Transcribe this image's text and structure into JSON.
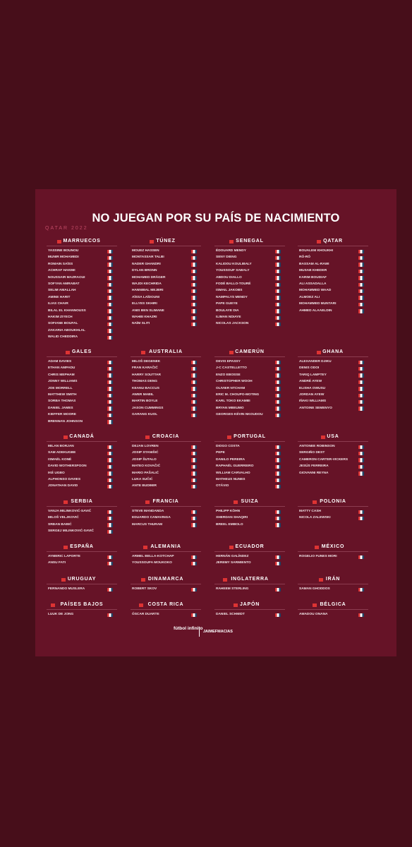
{
  "title": "NO JUEGAN POR SU PAÍS DE NACIMIENTO",
  "subtitle": "QATAR 2022",
  "groups": [
    {
      "team": "MARRUECOS",
      "players": [
        "YASSINE BOUNOU",
        "MUNIR MOHAMEDI",
        "ROMAIN SAÏSS",
        "ACHRAF HAKIMI",
        "NOUSSAIR MAZRAOUI",
        "SOFYAN AMRABAT",
        "SELIM AMALLAH",
        "AMINE HARIT",
        "ILIAS CHAIR",
        "BILAL EL KHANNOUSS",
        "HAKIM ZIYECH",
        "SOFIANE BOUFAL",
        "ZAKARIA ABOUKHLAL",
        "WALID CHEDDIRA"
      ]
    },
    {
      "team": "TÚNEZ",
      "players": [
        "MOUEZ HASSEN",
        "MONTASSAR TALBI",
        "NADER GHANDRI",
        "DYLAN BRONN",
        "MOHAMED DRÄGER",
        "WAJDI KECHRIDA",
        "HANNIBAL MEJBRI",
        "AÏSSA LAÏDOUNI",
        "ELLYES SKHIRI",
        "ANIS BEN SLIMANE",
        "WAHBI KHAZRI",
        "NAÏM SLITI"
      ]
    },
    {
      "team": "SENEGAL",
      "players": [
        "ÉDOUARD MENDY",
        "SENY DIENG",
        "KALIDOU KOULIBALY",
        "YOUSSOUF SABALY",
        "ABDOU DIALLO",
        "FODÉ BALLO-TOURÉ",
        "ISMAIL JAKOBS",
        "NAMPALYS MENDY",
        "PAPE GUEYE",
        "BOULAYE DIA",
        "ILIMAN NDIAYE",
        "NICOLAS JACKSON"
      ]
    },
    {
      "team": "QATAR",
      "players": [
        "BOUALEM KHOUKHI",
        "RÓ-RÓ",
        "BASSAM AL-RAWI",
        "MUSAB KHEDER",
        "KARIM BOUDIAF",
        "ALI ASSADALLA",
        "MOHAMMED WAAD",
        "ALMOEZ ALI",
        "MOHAMMED MUNTARI",
        "AHMED ALAAELDIN"
      ]
    },
    {
      "team": "GALES",
      "players": [
        "ADAM DAVIES",
        "ETHAN AMPADU",
        "CHRIS MEPHAM",
        "JONNY WILLIAMS",
        "JOE MORRELL",
        "MATTHEW SMITH",
        "SORBA THOMAS",
        "DANIEL JAMES",
        "KIEFFER MOORE",
        "BRENNAN JOHNSON"
      ]
    },
    {
      "team": "AUSTRALIA",
      "players": [
        "MILOŠ DEGENEK",
        "FRAN KARAČIĆ",
        "HARRY SOUTTAR",
        "THOMAS DENG",
        "KEANU BACCUS",
        "AWER MABIL",
        "MARTIN BOYLE",
        "JASON CUMMINGS",
        "GARANG KUOL"
      ]
    },
    {
      "team": "CAMERÚN",
      "players": [
        "DEVIS EPASSY",
        "J-C CASTELLETTO",
        "ENZO EBOSSE",
        "CHRISTOPHER WOOH",
        "OLIVIER NTCHAM",
        "ERIC M. CHOUPO-MOTING",
        "KARL TOKO EKAMBI",
        "BRYAN MBEUMO",
        "GEORGES-KÉVIN NKOUDOU"
      ]
    },
    {
      "team": "GHANA",
      "players": [
        "ALEXANDER DJIKU",
        "DENIS ODOI",
        "TARIQ LAMPTEY",
        "ANDRÉ AYEW",
        "ELISHA OWUSU",
        "JORDAN AYEW",
        "IÑAKI WILLIAMS",
        "ANTOINE SEMENYO"
      ]
    },
    {
      "team": "CANADÁ",
      "players": [
        "MILAN BORJAN",
        "SAM ADEKUGBE",
        "ISMAËL KONÉ",
        "DAVID WOTHERSPOON",
        "IKÉ UGBO",
        "ALPHONSO DAVIES",
        "JONATHAN DAVID"
      ]
    },
    {
      "team": "CROACIA",
      "players": [
        "DEJAN LOVREN",
        "JOSIP STANIŠIĆ",
        "JOSIP ŠUTALO",
        "MATEO KOVAČIĆ",
        "MARIO PAŠALIĆ",
        "LUKA SUČIĆ",
        "ANTE BUDIMIR"
      ]
    },
    {
      "team": "PORTUGAL",
      "players": [
        "DIOGO COSTA",
        "PEPE",
        "DANILO PEREIRA",
        "RAPHAËL GUERREIRO",
        "WILLIAM CARVALHO",
        "MATHEUS NUNES",
        "OTÁVIO"
      ]
    },
    {
      "team": "USA",
      "players": [
        "ANTONEE ROBINSON",
        "SERGIÑO DEST",
        "CAMERON CARTER-VICKERS",
        "JESÚS FERREIRA",
        "GIOVANNI REYNA"
      ]
    },
    {
      "team": "SERBIA",
      "players": [
        "VANJA MILINKOVIĆ-SAVIĆ",
        "MILOŠ VELJKOVIĆ",
        "SRĐAN BABIĆ",
        "SERGEJ MILINKOVIĆ-SAVIĆ"
      ]
    },
    {
      "team": "FRANCIA",
      "players": [
        "STEVE MANDANDA",
        "EDUARDO CAMAVINGA",
        "MARCUS THURAM"
      ]
    },
    {
      "team": "SUIZA",
      "players": [
        "PHILIPP KÖHN",
        "XHERDAN SHAQIRI",
        "BREEL EMBOLO"
      ]
    },
    {
      "team": "POLONIA",
      "players": [
        "MATTY CASH",
        "NICOLA ZALEWSKI"
      ]
    },
    {
      "team": "ESPAÑA",
      "players": [
        "AYMERIC LAPORTE",
        "ANSU FATI"
      ]
    },
    {
      "team": "ALEMANIA",
      "players": [
        "ARMEL BELLA-KOTCHAP",
        "YOUSSOUFA MOUKOKO"
      ]
    },
    {
      "team": "ECUADOR",
      "players": [
        "HERNÁN GALÍNDEZ",
        "JEREMY SARMIENTO"
      ]
    },
    {
      "team": "MÉXICO",
      "players": [
        "ROGELIO FUNES MORI"
      ]
    },
    {
      "team": "URUGUAY",
      "players": [
        "FERNANDO MUSLERA"
      ]
    },
    {
      "team": "DINAMARCA",
      "players": [
        "ROBERT SKOV"
      ]
    },
    {
      "team": "INGLATERRA",
      "players": [
        "RAHEEM STERLING"
      ]
    },
    {
      "team": "IRÁN",
      "players": [
        "SAMAN GHODDOS"
      ]
    },
    {
      "team": "PAÍSES BAJOS",
      "players": [
        "LUUK DE JONG"
      ]
    },
    {
      "team": "COSTA RICA",
      "players": [
        "ÓSCAR DUARTE"
      ]
    },
    {
      "team": "JAPÓN",
      "players": [
        "DANIEL SCHMIDT"
      ]
    },
    {
      "team": "BÉLGICA",
      "players": [
        "AMADOU ONANA"
      ]
    }
  ],
  "footer": {
    "logo": "fútbol infinito",
    "credit": "JAIMEFMACIAS"
  }
}
